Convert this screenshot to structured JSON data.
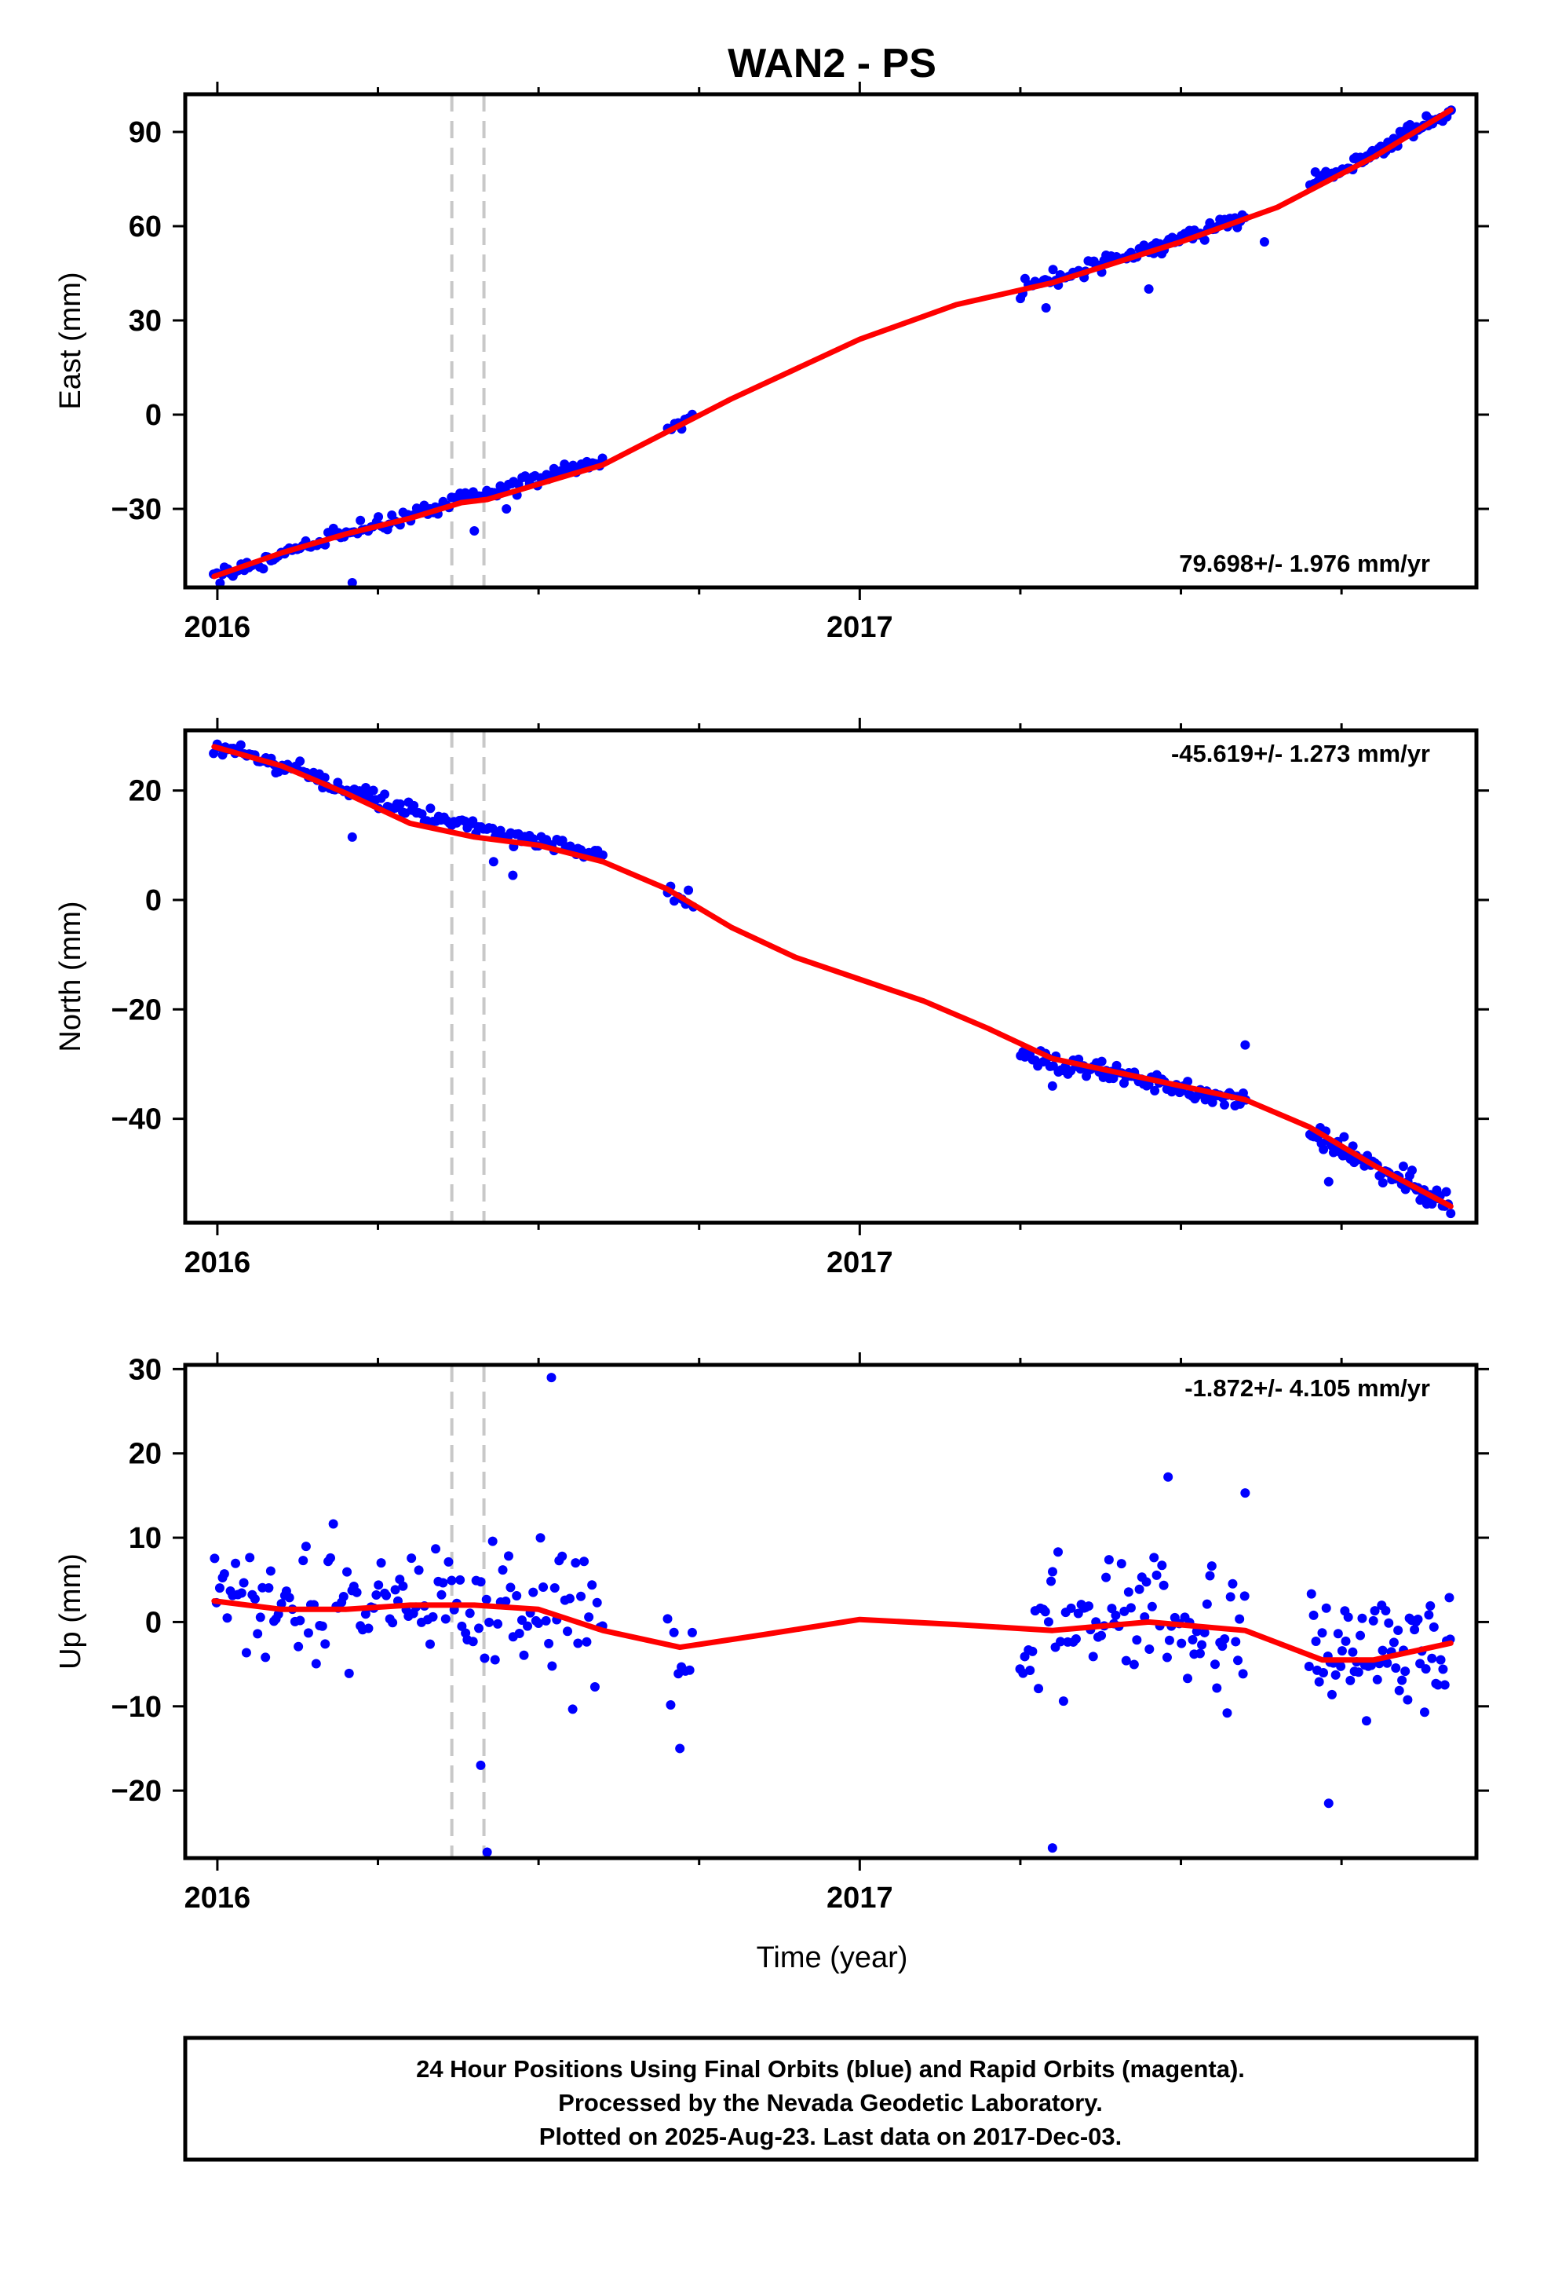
{
  "chart_data": {
    "title": "WAN2 - PS",
    "xlabel": "Time (year)",
    "x_ticks": [
      "2016",
      "2017"
    ],
    "colors": {
      "final_orbits": "#0000ff",
      "model": "#ff0000",
      "event_lines": "#c8c8c8",
      "frame": "#000000"
    },
    "event_lines_year": [
      2016.365,
      2016.415
    ],
    "xlim": [
      2015.95,
      2017.96
    ],
    "panels": [
      {
        "type": "scatter",
        "ylabel": "East (mm)",
        "ylim": [
          -55,
          102
        ],
        "yticks": [
          90,
          60,
          30,
          0,
          -30
        ],
        "yticklabels": [
          "90",
          "60",
          "30",
          "0",
          "−30"
        ],
        "rate": "79.698+/- 1.976 mm/yr",
        "rate_position": "bottom-right",
        "segments": [
          {
            "start": 2015.995,
            "end": 2016.6,
            "points": 145,
            "y0": -51.5,
            "y1": -12,
            "noise": 1.6
          },
          {
            "start": 2016.7,
            "end": 2016.74,
            "points": 8,
            "y0": -4,
            "y1": 1.5,
            "noise": 1.6
          },
          {
            "start": 2017.25,
            "end": 2017.6,
            "points": 90,
            "y0": 40,
            "y1": 63,
            "noise": 1.8
          },
          {
            "start": 2017.7,
            "end": 2017.92,
            "points": 70,
            "y0": 75,
            "y1": 96.5,
            "noise": 1.5
          }
        ],
        "outliers": [
          [
            2016.21,
            -53.5
          ],
          [
            2016.4,
            -37
          ],
          [
            2016.45,
            -30
          ],
          [
            2017.29,
            34
          ],
          [
            2017.45,
            40
          ],
          [
            2017.63,
            55
          ]
        ],
        "model": [
          [
            2015.995,
            -51.5
          ],
          [
            2016.1,
            -44
          ],
          [
            2016.2,
            -38
          ],
          [
            2016.3,
            -33
          ],
          [
            2016.38,
            -28
          ],
          [
            2016.42,
            -27
          ],
          [
            2016.6,
            -16
          ],
          [
            2016.8,
            5
          ],
          [
            2017.0,
            24
          ],
          [
            2017.15,
            35
          ],
          [
            2017.3,
            42
          ],
          [
            2017.5,
            55
          ],
          [
            2017.65,
            66
          ],
          [
            2017.8,
            82
          ],
          [
            2017.92,
            97
          ]
        ]
      },
      {
        "type": "scatter",
        "ylabel": "North (mm)",
        "ylim": [
          -59,
          31
        ],
        "yticks": [
          20,
          0,
          -20,
          -40
        ],
        "yticklabels": [
          "20",
          "0",
          "−20",
          "−40"
        ],
        "rate": "-45.619+/- 1.273 mm/yr",
        "rate_position": "top-right",
        "segments": [
          {
            "start": 2015.995,
            "end": 2016.6,
            "points": 145,
            "y0": 28,
            "y1": 8.5,
            "noise": 1.3
          },
          {
            "start": 2016.7,
            "end": 2016.74,
            "points": 8,
            "y0": 3,
            "y1": -2,
            "noise": 1.4
          },
          {
            "start": 2017.25,
            "end": 2017.6,
            "points": 90,
            "y0": -29,
            "y1": -37.5,
            "noise": 1.2
          },
          {
            "start": 2017.7,
            "end": 2017.92,
            "points": 70,
            "y0": -43,
            "y1": -56,
            "noise": 1.3
          }
        ],
        "outliers": [
          [
            2016.21,
            11.5
          ],
          [
            2016.46,
            4.5
          ],
          [
            2016.43,
            7
          ],
          [
            2017.6,
            -26.5
          ],
          [
            2017.73,
            -51.5
          ],
          [
            2017.3,
            -34
          ]
        ],
        "model": [
          [
            2015.995,
            28
          ],
          [
            2016.1,
            24.5
          ],
          [
            2016.2,
            19.5
          ],
          [
            2016.3,
            14
          ],
          [
            2016.4,
            11.5
          ],
          [
            2016.5,
            10
          ],
          [
            2016.6,
            7
          ],
          [
            2016.7,
            2
          ],
          [
            2016.8,
            -5
          ],
          [
            2016.9,
            -10.5
          ],
          [
            2017.0,
            -14.5
          ],
          [
            2017.1,
            -18.5
          ],
          [
            2017.2,
            -23.5
          ],
          [
            2017.3,
            -29
          ],
          [
            2017.4,
            -31.5
          ],
          [
            2017.5,
            -34
          ],
          [
            2017.6,
            -36.5
          ],
          [
            2017.7,
            -41.5
          ],
          [
            2017.8,
            -48.5
          ],
          [
            2017.92,
            -56
          ]
        ]
      },
      {
        "type": "scatter",
        "ylabel": "Up (mm)",
        "ylim": [
          -28,
          30.5
        ],
        "yticks": [
          30,
          20,
          10,
          0,
          -10,
          -20
        ],
        "yticklabels": [
          "30",
          "20",
          "10",
          "0",
          "−10",
          "−20"
        ],
        "rate": "-1.872+/- 4.105 mm/yr",
        "rate_position": "top-right",
        "segments": [
          {
            "start": 2015.995,
            "end": 2016.6,
            "points": 145,
            "y0": 2.5,
            "y1": 0.5,
            "noise": 5
          },
          {
            "start": 2016.7,
            "end": 2016.74,
            "points": 8,
            "y0": -2,
            "y1": -3,
            "noise": 5.5
          },
          {
            "start": 2017.25,
            "end": 2017.6,
            "points": 90,
            "y0": 0,
            "y1": -1,
            "noise": 5.5
          },
          {
            "start": 2017.7,
            "end": 2017.92,
            "points": 70,
            "y0": -4,
            "y1": -3,
            "noise": 4.5
          }
        ],
        "outliers": [
          [
            2016.52,
            29
          ],
          [
            2016.42,
            -27.3
          ],
          [
            2016.41,
            -17
          ],
          [
            2017.3,
            -26.8
          ],
          [
            2017.73,
            -21.5
          ],
          [
            2017.48,
            17.2
          ],
          [
            2016.72,
            -15
          ],
          [
            2017.6,
            15.3
          ]
        ],
        "model": [
          [
            2015.995,
            2.5
          ],
          [
            2016.1,
            1.5
          ],
          [
            2016.2,
            1.5
          ],
          [
            2016.3,
            2
          ],
          [
            2016.4,
            2
          ],
          [
            2016.5,
            1.5
          ],
          [
            2016.6,
            -1
          ],
          [
            2016.72,
            -3
          ],
          [
            2016.85,
            -1.5
          ],
          [
            2017.0,
            0.3
          ],
          [
            2017.15,
            -0.3
          ],
          [
            2017.3,
            -1
          ],
          [
            2017.45,
            0
          ],
          [
            2017.6,
            -1
          ],
          [
            2017.72,
            -4.5
          ],
          [
            2017.8,
            -4.5
          ],
          [
            2017.92,
            -2.5
          ]
        ]
      }
    ]
  },
  "footer": {
    "line1": "24 Hour Positions Using Final Orbits (blue) and Rapid Orbits (magenta).",
    "line2": "Processed by the Nevada Geodetic Laboratory.",
    "line3": "Plotted on 2025-Aug-23. Last data on 2017-Dec-03."
  }
}
